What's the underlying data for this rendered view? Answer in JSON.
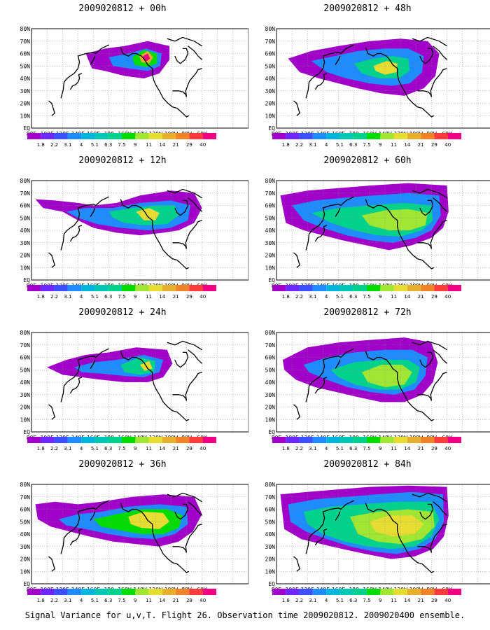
{
  "figure": {
    "caption": "Signal Variance for u,v,T. Flight 26. Observation time 2009020812. 2009020400 ensemble."
  },
  "map": {
    "lon_labels": [
      "80E",
      "100E",
      "120E",
      "140E",
      "160E",
      "180",
      "160W",
      "140W",
      "120W",
      "100W",
      "80W",
      "60W"
    ],
    "lat_labels": [
      "80N",
      "70N",
      "60N",
      "50N",
      "40N",
      "30N",
      "20N",
      "10N",
      "EQ"
    ]
  },
  "colorbar": {
    "levels": [
      "1.8",
      "2.2",
      "3.1",
      "4",
      "5.1",
      "6.3",
      "7.5",
      "9",
      "11",
      "14",
      "21",
      "29",
      "40"
    ],
    "colors": [
      "#a000c8",
      "#6e28ff",
      "#3c50ff",
      "#1e8cff",
      "#00b4dc",
      "#00c8b4",
      "#00d28c",
      "#00dc00",
      "#a0e632",
      "#e6dc32",
      "#e6af2d",
      "#f08228",
      "#fa3c3c",
      "#f00082"
    ]
  },
  "panels": [
    {
      "title": "2009020812 + 00h",
      "level": 0
    },
    {
      "title": "2009020812 + 48h",
      "level": 4
    },
    {
      "title": "2009020812 + 12h",
      "level": 1
    },
    {
      "title": "2009020812 + 60h",
      "level": 5
    },
    {
      "title": "2009020812 + 24h",
      "level": 2
    },
    {
      "title": "2009020812 + 72h",
      "level": 6
    },
    {
      "title": "2009020812 + 36h",
      "level": 3
    },
    {
      "title": "2009020812 + 84h",
      "level": 7
    }
  ]
}
